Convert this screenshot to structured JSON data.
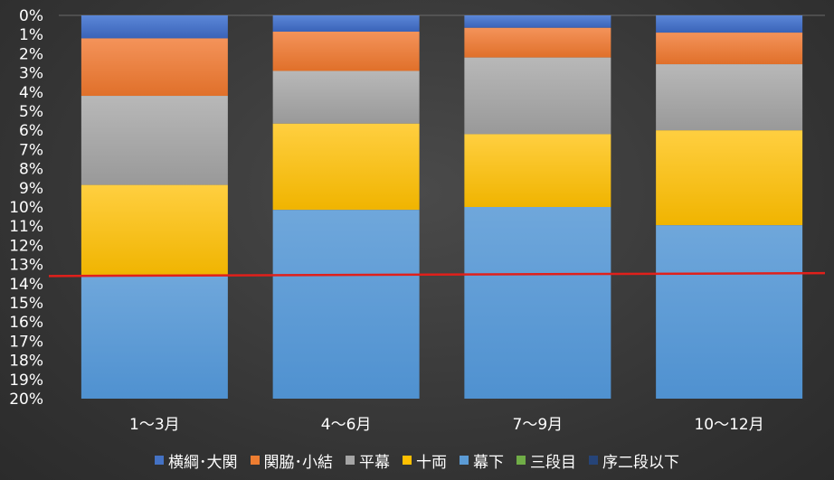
{
  "chart_data": {
    "type": "bar",
    "stacked": true,
    "y_inverted": true,
    "categories": [
      "1〜3月",
      "4〜6月",
      "7〜9月",
      "10〜12月"
    ],
    "ylim": [
      0,
      20
    ],
    "y_ticks": [
      "0%",
      "1%",
      "2%",
      "3%",
      "4%",
      "5%",
      "6%",
      "7%",
      "8%",
      "9%",
      "10%",
      "11%",
      "12%",
      "13%",
      "14%",
      "15%",
      "16%",
      "17%",
      "18%",
      "19%",
      "20%"
    ],
    "series": [
      {
        "name": "横綱･大関",
        "color": "#4472c4",
        "values": [
          1.2,
          0.85,
          0.65,
          0.9
        ]
      },
      {
        "name": "関脇･小結",
        "color": "#ed7d31",
        "values": [
          3.0,
          2.05,
          1.55,
          1.65
        ]
      },
      {
        "name": "平幕",
        "color": "#a5a5a5",
        "values": [
          4.65,
          2.75,
          4.0,
          3.45
        ]
      },
      {
        "name": "十両",
        "color": "#ffc000",
        "values": [
          4.75,
          4.5,
          3.8,
          4.95
        ]
      },
      {
        "name": "幕下",
        "color": "#5b9bd5",
        "values": [
          6.4,
          9.85,
          10.0,
          9.05
        ]
      },
      {
        "name": "三段目",
        "color": "#70ad47",
        "values": [
          0,
          0,
          0,
          0
        ]
      },
      {
        "name": "序二段以下",
        "color": "#264478",
        "values": [
          0,
          0,
          0,
          0
        ]
      }
    ],
    "reference_line": {
      "color": "#e0201b",
      "y_start": 13.6,
      "y_end": 13.45
    },
    "legend_position": "bottom",
    "grid": true
  }
}
